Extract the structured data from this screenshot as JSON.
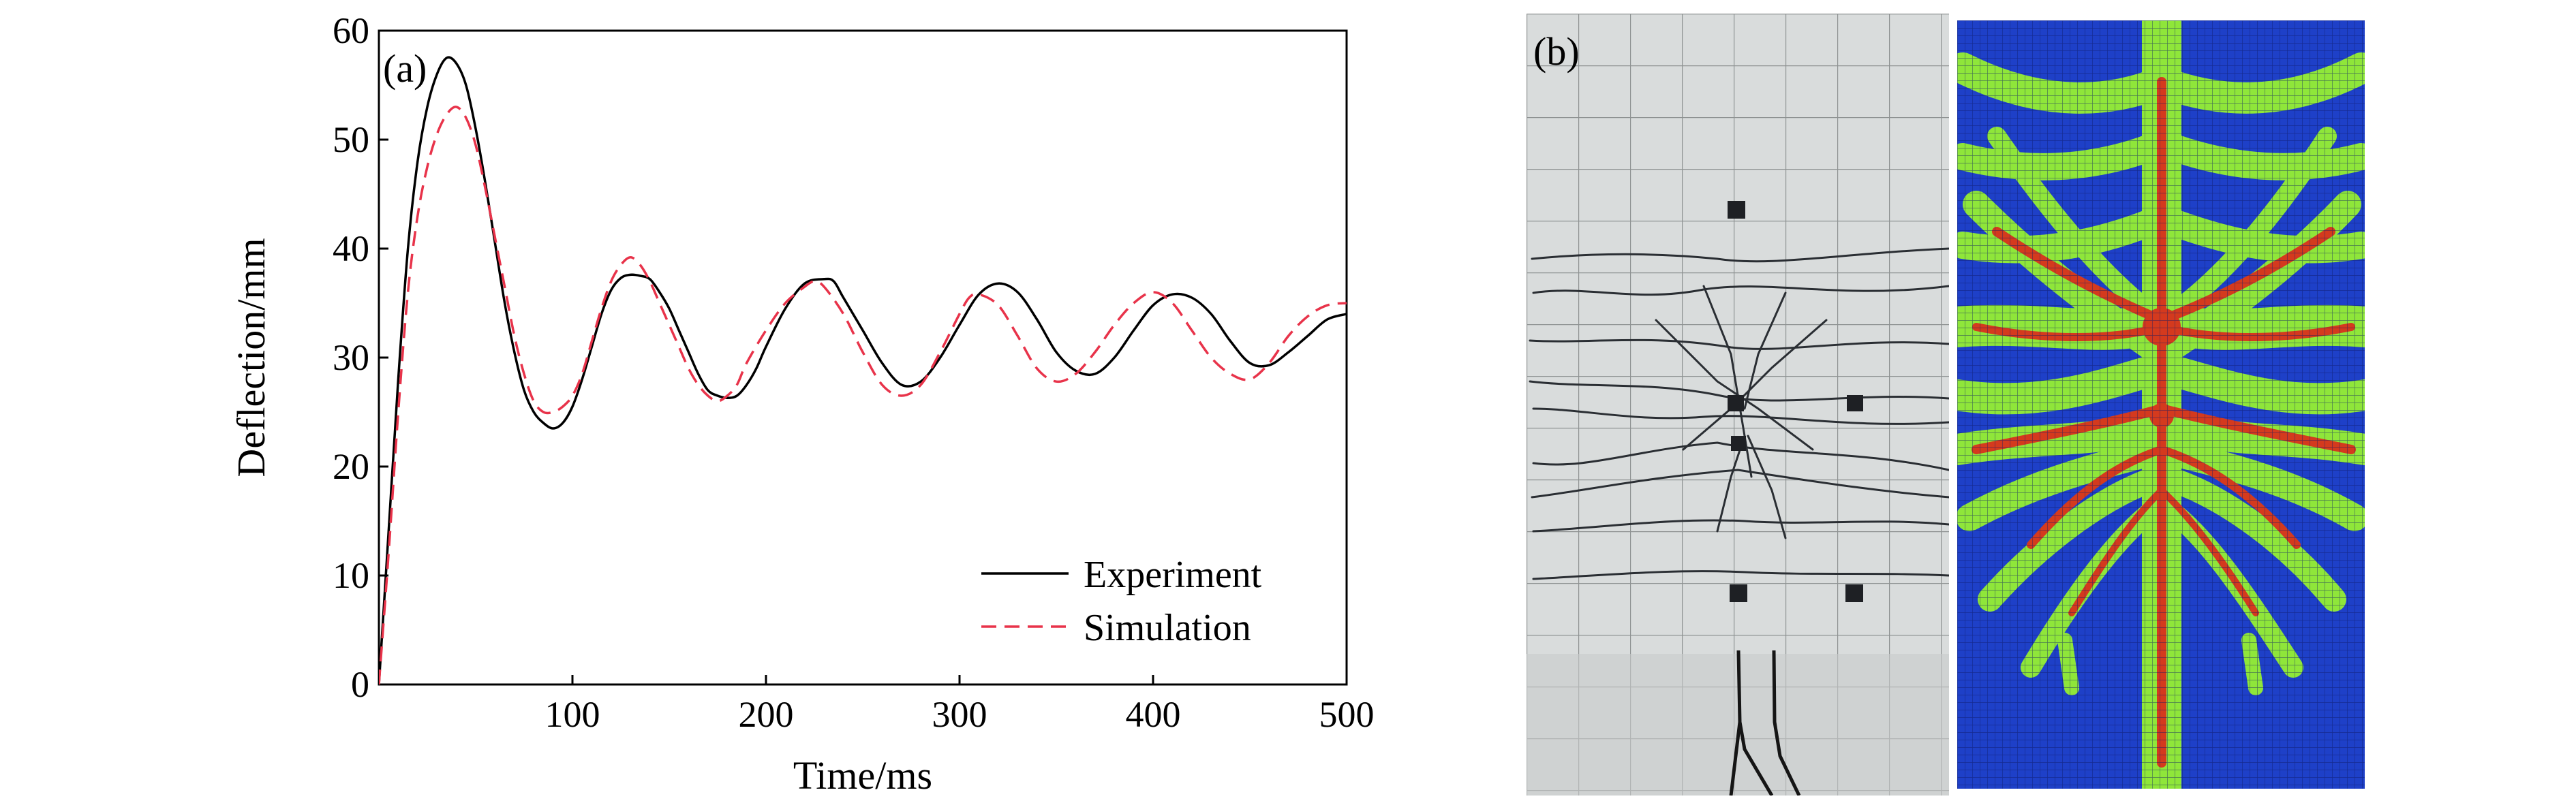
{
  "panels": {
    "a_label": "(a)",
    "b_label": "(b)"
  },
  "chart_data": {
    "type": "line",
    "title": "",
    "xlabel": "Time/ms",
    "ylabel": "Deflection/mm",
    "xlim": [
      0,
      500
    ],
    "ylim": [
      0,
      60
    ],
    "xticks": [
      100,
      200,
      300,
      400,
      500
    ],
    "yticks": [
      0,
      10,
      20,
      30,
      40,
      50,
      60
    ],
    "grid": false,
    "legend_position": "lower-right",
    "series": [
      {
        "name": "Experiment",
        "color": "#000000",
        "dash": "solid",
        "x": [
          0,
          5,
          10,
          15,
          20,
          25,
          30,
          35,
          40,
          45,
          50,
          55,
          60,
          65,
          70,
          75,
          80,
          85,
          90,
          95,
          100,
          105,
          110,
          115,
          120,
          125,
          130,
          135,
          140,
          145,
          150,
          155,
          160,
          165,
          170,
          175,
          180,
          185,
          190,
          195,
          200,
          210,
          220,
          230,
          235,
          240,
          250,
          260,
          270,
          280,
          290,
          300,
          310,
          320,
          330,
          340,
          350,
          360,
          370,
          380,
          390,
          400,
          410,
          420,
          430,
          440,
          450,
          460,
          470,
          480,
          490,
          500
        ],
        "y": [
          0,
          14,
          28,
          40,
          48,
          53,
          56,
          57.5,
          57.0,
          55.0,
          51.0,
          46.0,
          40.5,
          35.0,
          30.5,
          27.0,
          25.0,
          24.0,
          23.5,
          24.0,
          25.5,
          28.0,
          31.0,
          34.0,
          36.2,
          37.3,
          37.6,
          37.5,
          37.2,
          36.0,
          34.5,
          32.5,
          30.5,
          28.5,
          27.0,
          26.5,
          26.3,
          26.5,
          27.5,
          29.0,
          31.0,
          34.5,
          36.8,
          37.2,
          37.0,
          35.5,
          32.5,
          29.5,
          27.5,
          27.8,
          30.0,
          33.0,
          35.8,
          36.8,
          36.0,
          33.5,
          30.5,
          28.8,
          28.5,
          30.0,
          32.5,
          34.8,
          35.8,
          35.5,
          34.0,
          31.5,
          29.5,
          29.3,
          30.5,
          32.0,
          33.5,
          34.0
        ]
      },
      {
        "name": "Simulation",
        "color": "#e8334a",
        "dash": "dashed",
        "x": [
          0,
          5,
          10,
          15,
          20,
          25,
          30,
          35,
          40,
          45,
          50,
          55,
          60,
          65,
          70,
          75,
          80,
          85,
          90,
          95,
          100,
          105,
          110,
          115,
          120,
          125,
          130,
          135,
          140,
          145,
          150,
          155,
          160,
          165,
          170,
          175,
          180,
          185,
          190,
          200,
          210,
          220,
          225,
          230,
          240,
          250,
          260,
          270,
          280,
          290,
          300,
          305,
          310,
          320,
          330,
          340,
          350,
          360,
          370,
          380,
          390,
          400,
          410,
          420,
          430,
          440,
          450,
          460,
          470,
          480,
          490,
          500
        ],
        "y": [
          0,
          12,
          25,
          36,
          43,
          47.5,
          50.5,
          52.3,
          53.0,
          52.0,
          49.5,
          45.5,
          41.0,
          36.5,
          32.0,
          28.5,
          26.0,
          25.0,
          25.0,
          25.5,
          26.5,
          28.5,
          31.5,
          34.5,
          37.0,
          38.5,
          39.2,
          38.5,
          37.0,
          35.0,
          33.0,
          31.0,
          29.0,
          27.5,
          26.5,
          26.0,
          26.5,
          27.5,
          29.5,
          32.5,
          35.0,
          36.5,
          37.0,
          36.5,
          34.0,
          30.5,
          27.5,
          26.5,
          27.5,
          30.5,
          34.0,
          35.5,
          35.8,
          34.8,
          32.0,
          29.0,
          27.8,
          28.5,
          30.5,
          33.0,
          35.0,
          36.0,
          35.0,
          32.5,
          30.0,
          28.5,
          28.0,
          29.5,
          32.0,
          33.8,
          34.8,
          35.0
        ]
      }
    ]
  },
  "images": {
    "b_photo": "crack-pattern-photo",
    "b_contour": "damage-contour-plot"
  }
}
